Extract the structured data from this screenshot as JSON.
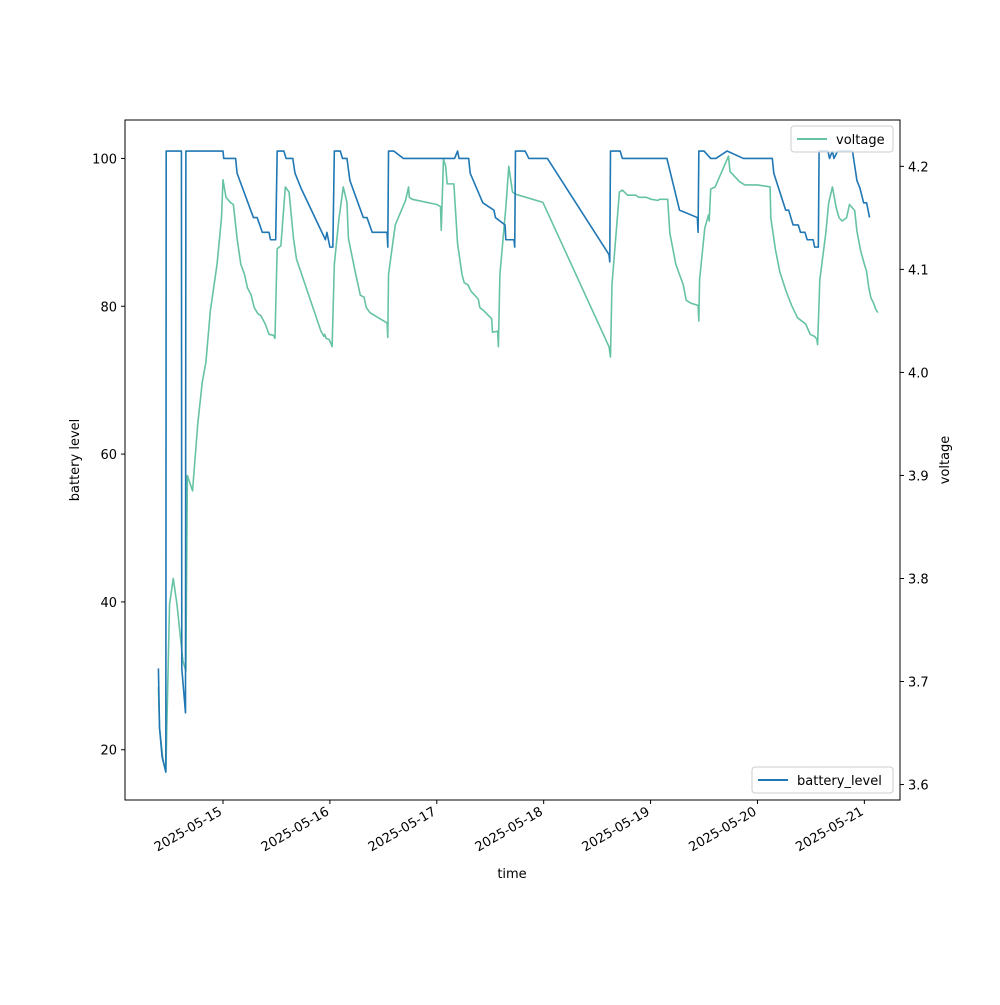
{
  "chart_data": {
    "type": "line",
    "xlabel": "time",
    "ylabel": "battery level",
    "y2label": "voltage",
    "x_range": [
      "2025-05-14 02:00",
      "2025-05-21 08:00"
    ],
    "ylim": [
      13.2,
      105.2
    ],
    "y2lim": [
      3.585,
      4.245
    ],
    "x_ticks": [
      "2025-05-15",
      "2025-05-16",
      "2025-05-17",
      "2025-05-18",
      "2025-05-19",
      "2025-05-20",
      "2025-05-21"
    ],
    "y_ticks": [
      20,
      40,
      60,
      80,
      100
    ],
    "y2_ticks": [
      3.6,
      3.7,
      3.8,
      3.9,
      4.0,
      4.1,
      4.2
    ],
    "legend_battery_position": "lower right",
    "legend_voltage_position": "upper right",
    "series": [
      {
        "name": "battery_level",
        "axis": "left",
        "color": "#1f77b4",
        "points": [
          [
            "2025-05-14 09:30",
            31
          ],
          [
            "2025-05-14 09:45",
            23
          ],
          [
            "2025-05-14 10:20",
            19
          ],
          [
            "2025-05-14 11:10",
            17
          ],
          [
            "2025-05-14 11:15",
            101
          ],
          [
            "2025-05-14 14:40",
            101
          ],
          [
            "2025-05-14 14:45",
            31
          ],
          [
            "2025-05-14 15:35",
            25
          ],
          [
            "2025-05-14 15:40",
            101
          ],
          [
            "2025-05-15 00:00",
            101
          ],
          [
            "2025-05-15 00:10",
            100
          ],
          [
            "2025-05-15 02:50",
            100
          ],
          [
            "2025-05-15 03:10",
            98
          ],
          [
            "2025-05-15 06:50",
            92
          ],
          [
            "2025-05-15 07:40",
            92
          ],
          [
            "2025-05-15 08:50",
            90
          ],
          [
            "2025-05-15 10:20",
            90
          ],
          [
            "2025-05-15 10:40",
            89
          ],
          [
            "2025-05-15 11:50",
            89
          ],
          [
            "2025-05-15 12:10",
            101
          ],
          [
            "2025-05-15 13:40",
            101
          ],
          [
            "2025-05-15 14:10",
            100
          ],
          [
            "2025-05-15 15:40",
            100
          ],
          [
            "2025-05-15 16:10",
            98
          ],
          [
            "2025-05-15 17:30",
            96
          ],
          [
            "2025-05-15 23:00",
            89
          ],
          [
            "2025-05-15 23:20",
            90
          ],
          [
            "2025-05-16 00:00",
            88
          ],
          [
            "2025-05-16 00:40",
            88
          ],
          [
            "2025-05-16 01:00",
            101
          ],
          [
            "2025-05-16 02:20",
            101
          ],
          [
            "2025-05-16 02:50",
            100
          ],
          [
            "2025-05-16 03:50",
            100
          ],
          [
            "2025-05-16 04:30",
            97
          ],
          [
            "2025-05-16 07:30",
            92
          ],
          [
            "2025-05-16 08:20",
            92
          ],
          [
            "2025-05-16 09:30",
            90
          ],
          [
            "2025-05-16 12:50",
            90
          ],
          [
            "2025-05-16 13:00",
            88
          ],
          [
            "2025-05-16 13:10",
            101
          ],
          [
            "2025-05-16 14:20",
            101
          ],
          [
            "2025-05-16 16:30",
            100
          ],
          [
            "2025-05-17 04:00",
            100
          ],
          [
            "2025-05-17 04:40",
            101
          ],
          [
            "2025-05-17 05:00",
            100
          ],
          [
            "2025-05-17 07:10",
            100
          ],
          [
            "2025-05-17 07:30",
            98
          ],
          [
            "2025-05-17 10:20",
            94
          ],
          [
            "2025-05-17 12:50",
            93
          ],
          [
            "2025-05-17 13:10",
            92
          ],
          [
            "2025-05-17 15:20",
            91
          ],
          [
            "2025-05-17 15:30",
            89
          ],
          [
            "2025-05-17 17:20",
            89
          ],
          [
            "2025-05-17 17:30",
            88
          ],
          [
            "2025-05-17 17:40",
            101
          ],
          [
            "2025-05-17 19:50",
            101
          ],
          [
            "2025-05-17 20:40",
            100
          ],
          [
            "2025-05-18 00:10",
            100
          ],
          [
            "2025-05-18 00:50",
            100
          ],
          [
            "2025-05-18 14:40",
            87
          ],
          [
            "2025-05-18 14:50",
            86
          ],
          [
            "2025-05-18 15:00",
            101
          ],
          [
            "2025-05-18 17:10",
            101
          ],
          [
            "2025-05-18 17:40",
            100
          ],
          [
            "2025-05-19 03:40",
            100
          ],
          [
            "2025-05-19 06:30",
            93
          ],
          [
            "2025-05-19 10:30",
            92
          ],
          [
            "2025-05-19 10:40",
            90
          ],
          [
            "2025-05-19 10:50",
            101
          ],
          [
            "2025-05-19 12:00",
            101
          ],
          [
            "2025-05-19 13:30",
            100
          ],
          [
            "2025-05-19 14:40",
            100
          ],
          [
            "2025-05-19 17:10",
            101
          ],
          [
            "2025-05-19 20:50",
            100
          ],
          [
            "2025-05-20 03:20",
            100
          ],
          [
            "2025-05-20 03:40",
            98
          ],
          [
            "2025-05-20 06:20",
            93
          ],
          [
            "2025-05-20 07:00",
            93
          ],
          [
            "2025-05-20 08:00",
            91
          ],
          [
            "2025-05-20 09:10",
            91
          ],
          [
            "2025-05-20 09:40",
            90
          ],
          [
            "2025-05-20 10:40",
            90
          ],
          [
            "2025-05-20 11:10",
            89
          ],
          [
            "2025-05-20 12:30",
            89
          ],
          [
            "2025-05-20 12:50",
            88
          ],
          [
            "2025-05-20 13:40",
            88
          ],
          [
            "2025-05-20 13:50",
            101
          ],
          [
            "2025-05-20 15:50",
            101
          ],
          [
            "2025-05-20 16:10",
            100
          ],
          [
            "2025-05-20 16:50",
            101
          ],
          [
            "2025-05-20 17:10",
            100
          ],
          [
            "2025-05-20 18:00",
            101
          ],
          [
            "2025-05-20 21:20",
            101
          ],
          [
            "2025-05-20 22:20",
            97
          ],
          [
            "2025-05-20 23:00",
            96
          ],
          [
            "2025-05-20 23:50",
            94
          ],
          [
            "2025-05-21 00:30",
            94
          ],
          [
            "2025-05-21 01:10",
            92
          ]
        ]
      },
      {
        "name": "voltage",
        "axis": "right",
        "color": "#66c2a5",
        "points": [
          [
            "2025-05-14 09:30",
            3.695
          ],
          [
            "2025-05-14 09:45",
            3.655
          ],
          [
            "2025-05-14 10:30",
            3.625
          ],
          [
            "2025-05-14 11:10",
            3.612
          ],
          [
            "2025-05-14 12:00",
            3.775
          ],
          [
            "2025-05-14 12:50",
            3.8
          ],
          [
            "2025-05-14 13:40",
            3.775
          ],
          [
            "2025-05-14 15:00",
            3.72
          ],
          [
            "2025-05-14 15:40",
            3.71
          ],
          [
            "2025-05-14 16:00",
            3.9
          ],
          [
            "2025-05-14 17:10",
            3.885
          ],
          [
            "2025-05-14 18:20",
            3.95
          ],
          [
            "2025-05-14 19:20",
            3.99
          ],
          [
            "2025-05-14 20:10",
            4.01
          ],
          [
            "2025-05-14 21:10",
            4.06
          ],
          [
            "2025-05-14 22:40",
            4.105
          ],
          [
            "2025-05-14 23:40",
            4.15
          ],
          [
            "2025-05-15 00:00",
            4.187
          ],
          [
            "2025-05-15 00:40",
            4.17
          ],
          [
            "2025-05-15 01:40",
            4.165
          ],
          [
            "2025-05-15 02:20",
            4.163
          ],
          [
            "2025-05-15 03:10",
            4.13
          ],
          [
            "2025-05-15 04:00",
            4.105
          ],
          [
            "2025-05-15 04:50",
            4.095
          ],
          [
            "2025-05-15 05:30",
            4.082
          ],
          [
            "2025-05-15 06:20",
            4.075
          ],
          [
            "2025-05-15 07:00",
            4.063
          ],
          [
            "2025-05-15 07:50",
            4.057
          ],
          [
            "2025-05-15 08:30",
            4.055
          ],
          [
            "2025-05-15 09:30",
            4.047
          ],
          [
            "2025-05-15 10:20",
            4.037
          ],
          [
            "2025-05-15 11:20",
            4.036
          ],
          [
            "2025-05-15 11:40",
            4.033
          ],
          [
            "2025-05-15 12:10",
            4.12
          ],
          [
            "2025-05-15 13:00",
            4.123
          ],
          [
            "2025-05-15 14:00",
            4.18
          ],
          [
            "2025-05-15 14:50",
            4.175
          ],
          [
            "2025-05-15 15:50",
            4.13
          ],
          [
            "2025-05-15 16:30",
            4.11
          ],
          [
            "2025-05-15 22:00",
            4.04
          ],
          [
            "2025-05-15 22:40",
            4.035
          ],
          [
            "2025-05-15 22:50",
            4.037
          ],
          [
            "2025-05-15 23:10",
            4.033
          ],
          [
            "2025-05-15 23:50",
            4.032
          ],
          [
            "2025-05-16 00:20",
            4.027
          ],
          [
            "2025-05-16 00:30",
            4.025
          ],
          [
            "2025-05-16 01:00",
            4.105
          ],
          [
            "2025-05-16 02:00",
            4.148
          ],
          [
            "2025-05-16 03:00",
            4.18
          ],
          [
            "2025-05-16 03:50",
            4.165
          ],
          [
            "2025-05-16 04:10",
            4.13
          ],
          [
            "2025-05-16 05:40",
            4.098
          ],
          [
            "2025-05-16 06:50",
            4.075
          ],
          [
            "2025-05-16 07:40",
            4.073
          ],
          [
            "2025-05-16 08:10",
            4.063
          ],
          [
            "2025-05-16 09:00",
            4.058
          ],
          [
            "2025-05-16 10:10",
            4.055
          ],
          [
            "2025-05-16 12:50",
            4.048
          ],
          [
            "2025-05-16 13:00",
            4.034
          ],
          [
            "2025-05-16 13:10",
            4.095
          ],
          [
            "2025-05-16 14:40",
            4.143
          ],
          [
            "2025-05-16 17:00",
            4.167
          ],
          [
            "2025-05-16 17:40",
            4.18
          ],
          [
            "2025-05-16 17:50",
            4.17
          ],
          [
            "2025-05-16 18:30",
            4.168
          ],
          [
            "2025-05-17 00:00",
            4.163
          ],
          [
            "2025-05-17 00:50",
            4.161
          ],
          [
            "2025-05-17 01:00",
            4.138
          ],
          [
            "2025-05-17 01:30",
            4.207
          ],
          [
            "2025-05-17 02:00",
            4.2
          ],
          [
            "2025-05-17 02:20",
            4.183
          ],
          [
            "2025-05-17 03:50",
            4.183
          ],
          [
            "2025-05-17 04:40",
            4.125
          ],
          [
            "2025-05-17 05:40",
            4.095
          ],
          [
            "2025-05-17 06:10",
            4.087
          ],
          [
            "2025-05-17 07:00",
            4.085
          ],
          [
            "2025-05-17 07:40",
            4.079
          ],
          [
            "2025-05-17 09:20",
            4.071
          ],
          [
            "2025-05-17 09:40",
            4.063
          ],
          [
            "2025-05-17 10:30",
            4.06
          ],
          [
            "2025-05-17 12:20",
            4.052
          ],
          [
            "2025-05-17 12:30",
            4.039
          ],
          [
            "2025-05-17 13:40",
            4.04
          ],
          [
            "2025-05-17 13:50",
            4.025
          ],
          [
            "2025-05-17 14:10",
            4.095
          ],
          [
            "2025-05-17 15:30",
            4.16
          ],
          [
            "2025-05-17 16:10",
            4.2
          ],
          [
            "2025-05-17 17:00",
            4.175
          ],
          [
            "2025-05-17 17:40",
            4.173
          ],
          [
            "2025-05-17 23:50",
            4.165
          ],
          [
            "2025-05-18 14:40",
            4.025
          ],
          [
            "2025-05-18 15:00",
            4.015
          ],
          [
            "2025-05-18 15:20",
            4.085
          ],
          [
            "2025-05-18 17:00",
            4.175
          ],
          [
            "2025-05-18 17:40",
            4.177
          ],
          [
            "2025-05-18 18:50",
            4.172
          ],
          [
            "2025-05-18 20:40",
            4.172
          ],
          [
            "2025-05-18 21:20",
            4.17
          ],
          [
            "2025-05-18 23:00",
            4.17
          ],
          [
            "2025-05-19 00:10",
            4.168
          ],
          [
            "2025-05-19 01:40",
            4.167
          ],
          [
            "2025-05-19 02:00",
            4.168
          ],
          [
            "2025-05-19 03:50",
            4.168
          ],
          [
            "2025-05-19 04:20",
            4.135
          ],
          [
            "2025-05-19 05:40",
            4.105
          ],
          [
            "2025-05-19 07:20",
            4.085
          ],
          [
            "2025-05-19 08:00",
            4.07
          ],
          [
            "2025-05-19 09:10",
            4.067
          ],
          [
            "2025-05-19 10:40",
            4.065
          ],
          [
            "2025-05-19 10:50",
            4.05
          ],
          [
            "2025-05-19 11:00",
            4.09
          ],
          [
            "2025-05-19 12:10",
            4.14
          ],
          [
            "2025-05-19 13:00",
            4.153
          ],
          [
            "2025-05-19 13:10",
            4.147
          ],
          [
            "2025-05-19 13:30",
            4.178
          ],
          [
            "2025-05-19 14:30",
            4.18
          ],
          [
            "2025-05-19 17:00",
            4.205
          ],
          [
            "2025-05-19 17:30",
            4.21
          ],
          [
            "2025-05-19 17:50",
            4.195
          ],
          [
            "2025-05-19 20:00",
            4.185
          ],
          [
            "2025-05-19 21:10",
            4.182
          ],
          [
            "2025-05-20 00:00",
            4.182
          ],
          [
            "2025-05-20 01:30",
            4.181
          ],
          [
            "2025-05-20 02:50",
            4.18
          ],
          [
            "2025-05-20 03:00",
            4.15
          ],
          [
            "2025-05-20 04:00",
            4.12
          ],
          [
            "2025-05-20 05:00",
            4.098
          ],
          [
            "2025-05-20 06:20",
            4.08
          ],
          [
            "2025-05-20 07:40",
            4.065
          ],
          [
            "2025-05-20 09:00",
            4.053
          ],
          [
            "2025-05-20 10:50",
            4.047
          ],
          [
            "2025-05-20 11:50",
            4.037
          ],
          [
            "2025-05-20 12:50",
            4.035
          ],
          [
            "2025-05-20 13:20",
            4.032
          ],
          [
            "2025-05-20 13:30",
            4.027
          ],
          [
            "2025-05-20 14:00",
            4.09
          ],
          [
            "2025-05-20 15:20",
            4.135
          ],
          [
            "2025-05-20 16:00",
            4.165
          ],
          [
            "2025-05-20 16:50",
            4.18
          ],
          [
            "2025-05-20 17:40",
            4.16
          ],
          [
            "2025-05-20 18:20",
            4.15
          ],
          [
            "2025-05-20 19:00",
            4.147
          ],
          [
            "2025-05-20 20:00",
            4.15
          ],
          [
            "2025-05-20 20:40",
            4.163
          ],
          [
            "2025-05-20 21:50",
            4.157
          ],
          [
            "2025-05-20 22:20",
            4.137
          ],
          [
            "2025-05-20 23:10",
            4.118
          ],
          [
            "2025-05-21 00:00",
            4.105
          ],
          [
            "2025-05-21 00:30",
            4.098
          ],
          [
            "2025-05-21 01:00",
            4.082
          ],
          [
            "2025-05-21 01:30",
            4.072
          ],
          [
            "2025-05-21 02:00",
            4.068
          ],
          [
            "2025-05-21 02:30",
            4.062
          ],
          [
            "2025-05-21 03:00",
            4.058
          ]
        ]
      }
    ]
  }
}
